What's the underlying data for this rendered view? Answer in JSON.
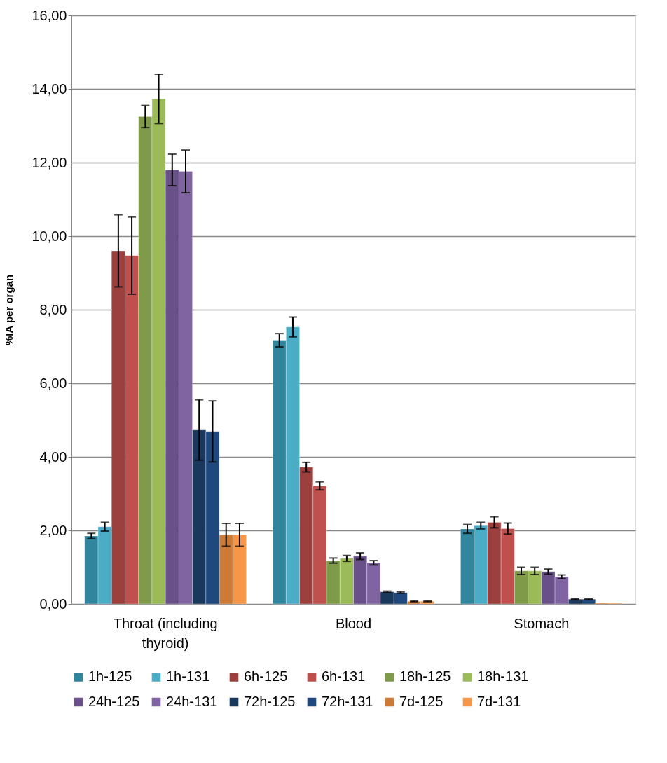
{
  "chart_data": {
    "type": "bar",
    "ylabel": "%IA per organ",
    "categories": [
      "Throat (including thyroid)",
      "Blood",
      "Stomach"
    ],
    "series": [
      {
        "name": "1h-125",
        "color": "#31859c",
        "values": [
          1.85,
          7.17,
          2.04
        ],
        "errors": [
          0.07,
          0.18,
          0.12
        ]
      },
      {
        "name": "1h-131",
        "color": "#4bacc6",
        "values": [
          2.1,
          7.53,
          2.13
        ],
        "errors": [
          0.12,
          0.27,
          0.09
        ]
      },
      {
        "name": "6h-125",
        "color": "#9c403e",
        "values": [
          9.6,
          3.72,
          2.22
        ],
        "errors": [
          0.98,
          0.13,
          0.15
        ]
      },
      {
        "name": "6h-131",
        "color": "#c0504d",
        "values": [
          9.47,
          3.21,
          2.05
        ],
        "errors": [
          1.05,
          0.11,
          0.15
        ]
      },
      {
        "name": "18h-125",
        "color": "#7f9a48",
        "values": [
          13.25,
          1.18,
          0.9
        ],
        "errors": [
          0.3,
          0.07,
          0.1
        ]
      },
      {
        "name": "18h-131",
        "color": "#9bbb59",
        "values": [
          13.73,
          1.24,
          0.9
        ],
        "errors": [
          0.67,
          0.08,
          0.1
        ]
      },
      {
        "name": "24h-125",
        "color": "#6a5088",
        "values": [
          11.8,
          1.3,
          0.88
        ],
        "errors": [
          0.43,
          0.09,
          0.07
        ]
      },
      {
        "name": "24h-131",
        "color": "#8064a2",
        "values": [
          11.76,
          1.12,
          0.74
        ],
        "errors": [
          0.58,
          0.06,
          0.05
        ]
      },
      {
        "name": "72h-125",
        "color": "#1a375c",
        "values": [
          4.73,
          0.33,
          0.13
        ],
        "errors": [
          0.82,
          0.02,
          0.01
        ]
      },
      {
        "name": "72h-131",
        "color": "#1f497d",
        "values": [
          4.69,
          0.31,
          0.13
        ],
        "errors": [
          0.83,
          0.02,
          0.01
        ]
      },
      {
        "name": "7d-125",
        "color": "#cd7a37",
        "values": [
          1.88,
          0.07,
          0.02
        ],
        "errors": [
          0.31,
          0.01,
          null
        ]
      },
      {
        "name": "7d-131",
        "color": "#f79646",
        "values": [
          1.88,
          0.07,
          0.02
        ],
        "errors": [
          0.31,
          0.01,
          null
        ]
      }
    ],
    "ylim": [
      0,
      16
    ],
    "yticks": [
      {
        "value": 0,
        "label": "0,00"
      },
      {
        "value": 2,
        "label": "2,00"
      },
      {
        "value": 4,
        "label": "4,00"
      },
      {
        "value": 6,
        "label": "6,00"
      },
      {
        "value": 8,
        "label": "8,00"
      },
      {
        "value": 10,
        "label": "10,00"
      },
      {
        "value": 12,
        "label": "12,00"
      },
      {
        "value": 14,
        "label": "14,00"
      },
      {
        "value": 16,
        "label": "16,00"
      }
    ],
    "grid": "y",
    "legend": "bottom"
  }
}
